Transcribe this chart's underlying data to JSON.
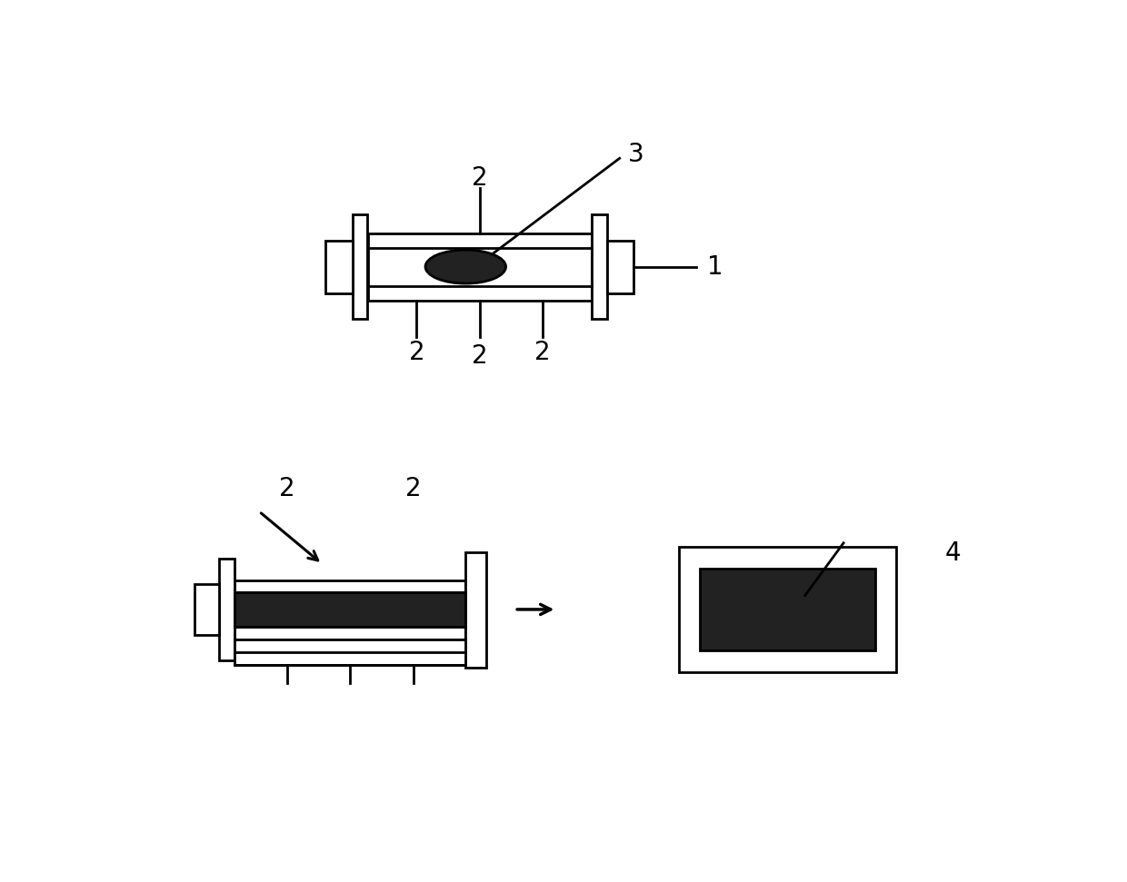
{
  "bg_color": "#ffffff",
  "line_color": "#000000",
  "dark_fill": "#222222",
  "label_color": "#000000",
  "figsize": [
    12.4,
    9.71
  ],
  "dpi": 100
}
